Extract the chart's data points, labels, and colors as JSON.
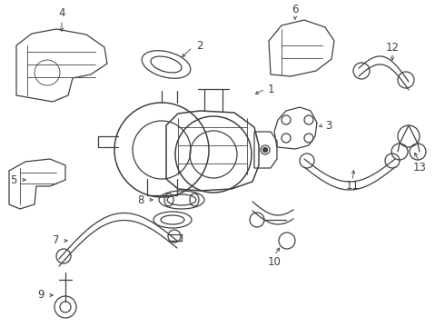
{
  "bg_color": "#ffffff",
  "line_color": "#404040",
  "label_color": "#000000",
  "lw": 0.9,
  "fontsize": 8.5,
  "xlim": [
    0,
    490
  ],
  "ylim": [
    0,
    360
  ]
}
